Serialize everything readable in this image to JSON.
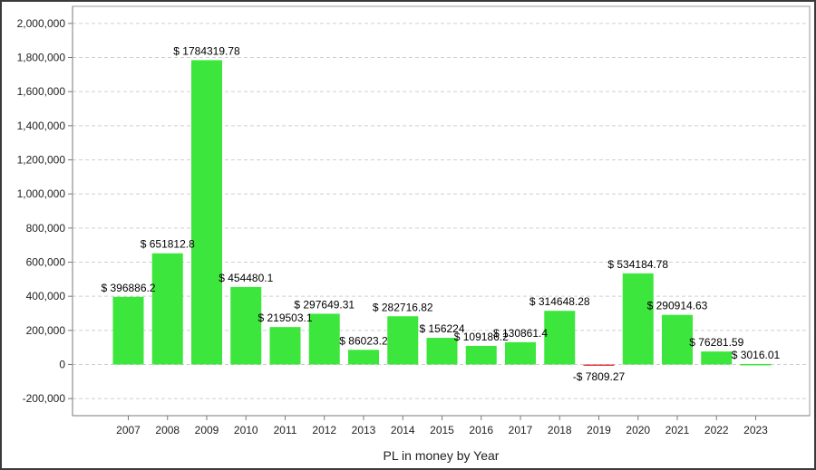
{
  "chart_data": {
    "type": "bar",
    "xlabel": "PL in money by Year",
    "ylabel": "",
    "title": "",
    "ylim": [
      -300000,
      2100000
    ],
    "yticks": [
      -200000,
      0,
      200000,
      400000,
      600000,
      800000,
      1000000,
      1200000,
      1400000,
      1600000,
      1800000,
      2000000
    ],
    "ytick_labels": [
      "-200,000",
      "0",
      "200,000",
      "400,000",
      "600,000",
      "800,000",
      "1,000,000",
      "1,200,000",
      "1,400,000",
      "1,600,000",
      "1,800,000",
      "2,000,000"
    ],
    "grid": true,
    "categories": [
      "2007",
      "2008",
      "2009",
      "2010",
      "2011",
      "2012",
      "2013",
      "2014",
      "2015",
      "2016",
      "2017",
      "2018",
      "2019",
      "2020",
      "2021",
      "2022",
      "2023"
    ],
    "values": [
      396886.2,
      651812.8,
      1784319.78,
      454480.1,
      219503.1,
      297649.31,
      86023.2,
      282716.82,
      156224,
      109186.2,
      130861.4,
      314648.28,
      -7809.27,
      534184.78,
      290914.63,
      76281.59,
      3016.01
    ],
    "labels": [
      "$ 396886.2",
      "$ 651812.8",
      "$ 1784319.78",
      "$ 454480.1",
      "$ 219503.1",
      "$ 297649.31",
      "$ 86023.2",
      "$ 282716.82",
      "$ 156224",
      "$ 109186.2",
      "$ 130861.4",
      "$ 314648.28",
      "-$ 7809.27",
      "$ 534184.78",
      "$ 290914.63",
      "$ 76281.59",
      "$ 3016.01"
    ],
    "colors": {
      "positive": "#3de63d",
      "negative": "#e63d3d",
      "grid": "#cfcfcf",
      "axis": "#7a7a7a"
    }
  }
}
